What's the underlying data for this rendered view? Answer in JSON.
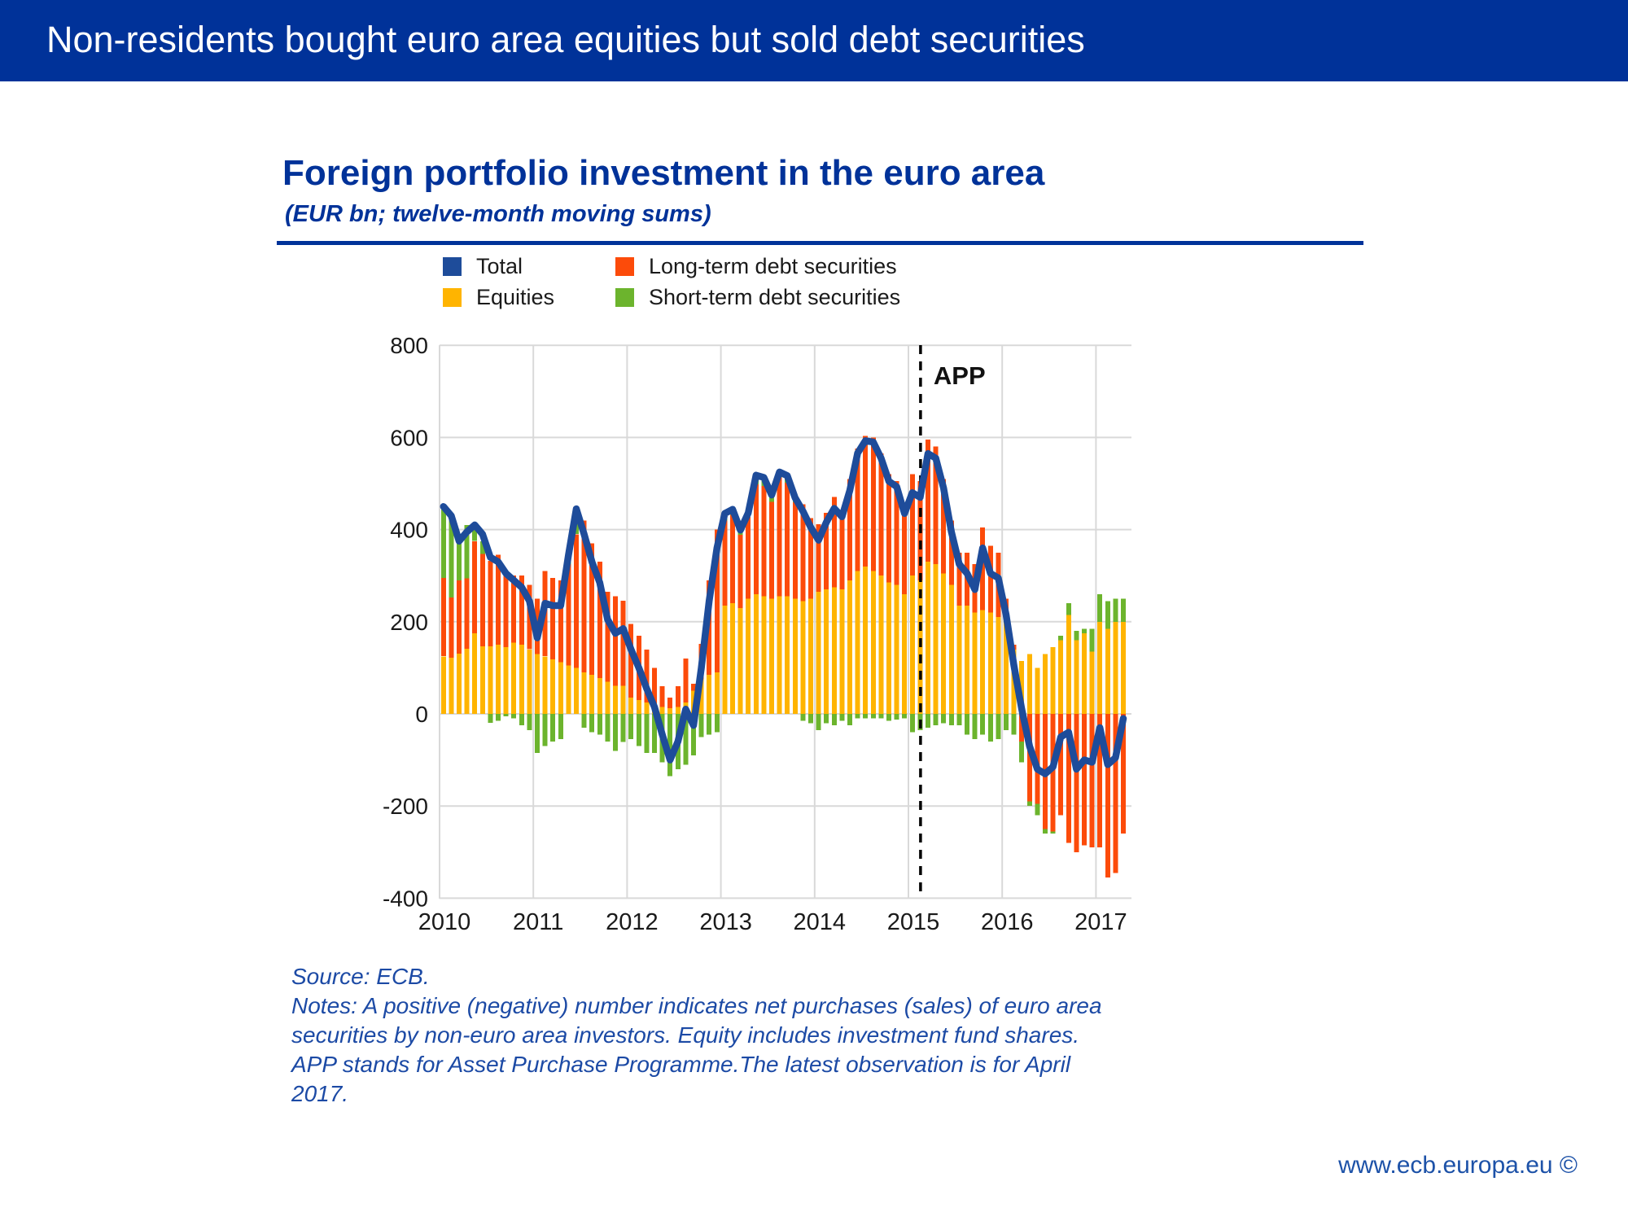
{
  "banner": {
    "title": "Non-residents bought euro area equities but sold debt securities"
  },
  "chart": {
    "title": "Foreign portfolio investment in the euro area",
    "subtitle": "(EUR bn; twelve-month moving sums)",
    "legend": [
      {
        "label": "Total",
        "color": "#1E4C9A"
      },
      {
        "label": "Long-term debt securities",
        "color": "#FC4B0A"
      },
      {
        "label": "Equities",
        "color": "#FFB400"
      },
      {
        "label": "Short-term debt securities",
        "color": "#6CB42D"
      }
    ],
    "chart_data": {
      "type": "bar",
      "bar_mode": "stacked",
      "x_start": "2010-01",
      "x_end": "2017-04",
      "x_labels": [
        "2010",
        "2011",
        "2012",
        "2013",
        "2014",
        "2015",
        "2016",
        "2017"
      ],
      "y_ticks": [
        800,
        600,
        400,
        200,
        0,
        -200,
        -400
      ],
      "ylim": [
        -400,
        800
      ],
      "grid": true,
      "legend_position": "top",
      "series": [
        {
          "name": "Equities",
          "type": "bar",
          "color": "#FFB400",
          "values": [
            125,
            122,
            131,
            141,
            175,
            147,
            147,
            150,
            145,
            155,
            150,
            140,
            130,
            125,
            118,
            112,
            105,
            100,
            90,
            85,
            78,
            70,
            61,
            61,
            35,
            30,
            25,
            20,
            15,
            12,
            15,
            25,
            50,
            75,
            85,
            90,
            235,
            240,
            230,
            250,
            260,
            255,
            250,
            255,
            255,
            250,
            245,
            250,
            265,
            270,
            275,
            270,
            290,
            310,
            320,
            310,
            300,
            285,
            280,
            260,
            300,
            290,
            330,
            325,
            305,
            280,
            235,
            235,
            220,
            225,
            220,
            210,
            205,
            140,
            115,
            130,
            100,
            130,
            145,
            160,
            215,
            160,
            175,
            135,
            200,
            185,
            200,
            200
          ]
        },
        {
          "name": "Long-term debt securities",
          "type": "bar",
          "color": "#FC4B0A",
          "values": [
            170,
            131,
            159,
            153,
            200,
            200,
            185,
            195,
            165,
            145,
            150,
            140,
            120,
            185,
            177,
            178,
            220,
            290,
            330,
            285,
            252,
            195,
            194,
            185,
            160,
            140,
            115,
            80,
            45,
            23,
            45,
            95,
            15,
            77,
            205,
            310,
            185,
            192,
            159,
            178,
            238,
            240,
            210,
            258,
            247,
            209,
            210,
            175,
            147,
            166,
            196,
            173,
            220,
            266,
            283,
            290,
            265,
            235,
            225,
            185,
            220,
            215,
            265,
            255,
            205,
            140,
            115,
            115,
            105,
            180,
            145,
            140,
            45,
            10,
            -60,
            -190,
            -195,
            -250,
            -255,
            -220,
            -280,
            -300,
            -285,
            -290,
            -290,
            -355,
            -345,
            -260
          ]
        },
        {
          "name": "Short-term debt securities",
          "type": "bar",
          "color": "#6CB42D",
          "values": [
            160,
            178,
            84,
            116,
            34,
            28,
            -19,
            -15,
            -5,
            -10,
            -25,
            -35,
            -85,
            -70,
            -60,
            -55,
            20,
            55,
            -30,
            -40,
            -45,
            -60,
            -80,
            -61,
            -55,
            -70,
            -85,
            -85,
            -105,
            -135,
            -120,
            -110,
            -90,
            -50,
            -45,
            -40,
            15,
            12,
            10,
            8,
            20,
            18,
            15,
            12,
            15,
            10,
            -15,
            -20,
            -35,
            -20,
            -25,
            -15,
            -25,
            -10,
            -10,
            -10,
            -10,
            -15,
            -12,
            -10,
            -40,
            -35,
            -30,
            -25,
            -20,
            -25,
            -25,
            -45,
            -55,
            -45,
            -60,
            -55,
            -35,
            -45,
            -45,
            -10,
            -25,
            -10,
            -5,
            10,
            25,
            20,
            10,
            50,
            60,
            60,
            50,
            50
          ]
        },
        {
          "name": "Total",
          "type": "line",
          "color": "#1E4C9A",
          "values": [
            450,
            430,
            375,
            395,
            410,
            390,
            340,
            330,
            305,
            290,
            275,
            245,
            165,
            240,
            235,
            235,
            345,
            445,
            390,
            330,
            285,
            205,
            175,
            185,
            140,
            100,
            55,
            15,
            -45,
            -100,
            -60,
            10,
            -25,
            100,
            245,
            360,
            435,
            444,
            399,
            436,
            518,
            513,
            475,
            525,
            517,
            469,
            440,
            405,
            377,
            416,
            446,
            428,
            485,
            566,
            593,
            590,
            555,
            505,
            493,
            435,
            480,
            470,
            565,
            555,
            490,
            395,
            325,
            305,
            270,
            360,
            305,
            295,
            215,
            105,
            10,
            -70,
            -120,
            -130,
            -115,
            -50,
            -40,
            -120,
            -100,
            -105,
            -30,
            -110,
            -95,
            -10
          ]
        }
      ],
      "annotation": {
        "label": "APP",
        "month_offset": 61.55,
        "date": "2015-03"
      }
    }
  },
  "notes": {
    "source": "Source: ECB.",
    "text": "Notes: A positive (negative) number indicates net purchases (sales) of euro area securities by non-euro area investors. Equity includes investment fund shares. APP stands for Asset Purchase Programme.The latest observation is for April 2017."
  },
  "footer": {
    "url": "www.ecb.europa.eu ©"
  }
}
